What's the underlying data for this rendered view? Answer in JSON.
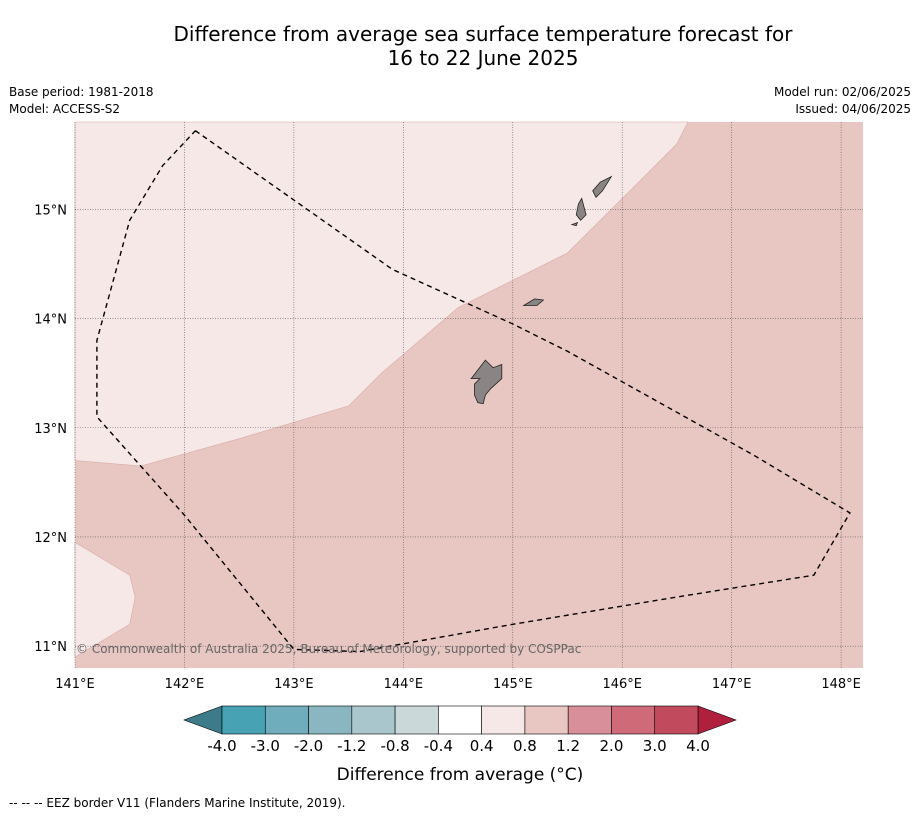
{
  "title_line1": "Difference from average sea surface temperature forecast for",
  "title_line2": "16 to 22 June 2025",
  "header_left": {
    "base_period": "Base period: 1981-2018",
    "model": "Model: ACCESS-S2"
  },
  "header_right": {
    "model_run": "Model run: 02/06/2025",
    "issued": "Issued: 04/06/2025"
  },
  "map": {
    "lon_range": [
      141.0,
      148.2
    ],
    "lat_range": [
      10.8,
      15.8
    ],
    "lon_ticks": [
      141,
      142,
      143,
      144,
      145,
      146,
      147,
      148
    ],
    "lat_ticks": [
      11,
      12,
      13,
      14,
      15
    ],
    "lon_tick_labels": [
      "141°E",
      "142°E",
      "143°E",
      "144°E",
      "145°E",
      "146°E",
      "147°E",
      "148°E"
    ],
    "lat_tick_labels": [
      "11°N",
      "12°N",
      "13°N",
      "14°N",
      "15°N"
    ],
    "copyright": "© Commonwealth of Australia 2025, Bureau of Meteorology, supported by COSPPac",
    "regions": [
      {
        "category": "0.4 to 0.8",
        "color": "#f5e8e7",
        "lonlat": [
          [
            141.0,
            15.8
          ],
          [
            146.6,
            15.8
          ],
          [
            146.5,
            15.6
          ],
          [
            145.5,
            14.6
          ],
          [
            144.5,
            14.1
          ],
          [
            143.8,
            13.5
          ],
          [
            143.5,
            13.2
          ],
          [
            142.5,
            12.9
          ],
          [
            141.6,
            12.65
          ],
          [
            141.0,
            12.7
          ]
        ]
      },
      {
        "category": "0.4 to 0.8",
        "color": "#f5e8e7",
        "lonlat": [
          [
            141.0,
            11.95
          ],
          [
            141.5,
            11.65
          ],
          [
            141.55,
            11.45
          ],
          [
            141.5,
            11.2
          ],
          [
            141.0,
            10.9
          ]
        ]
      }
    ],
    "background_category": {
      "category": "0.8 to 1.2",
      "color": "#e8c6c2"
    },
    "islands": [
      {
        "name": "Guam",
        "lonlat": [
          [
            144.75,
            13.62
          ],
          [
            144.82,
            13.55
          ],
          [
            144.9,
            13.58
          ],
          [
            144.9,
            13.45
          ],
          [
            144.8,
            13.36
          ],
          [
            144.75,
            13.3
          ],
          [
            144.73,
            13.22
          ],
          [
            144.68,
            13.23
          ],
          [
            144.65,
            13.3
          ],
          [
            144.65,
            13.4
          ],
          [
            144.7,
            13.45
          ],
          [
            144.62,
            13.45
          ]
        ]
      },
      {
        "name": "Rota",
        "lonlat": [
          [
            145.1,
            14.12
          ],
          [
            145.2,
            14.18
          ],
          [
            145.28,
            14.17
          ],
          [
            145.22,
            14.12
          ],
          [
            145.15,
            14.12
          ]
        ]
      },
      {
        "name": "Tinian",
        "lonlat": [
          [
            145.63,
            15.1
          ],
          [
            145.67,
            14.95
          ],
          [
            145.62,
            14.9
          ],
          [
            145.58,
            14.95
          ],
          [
            145.6,
            15.05
          ]
        ]
      },
      {
        "name": "Saipan",
        "lonlat": [
          [
            145.8,
            15.25
          ],
          [
            145.9,
            15.3
          ],
          [
            145.82,
            15.17
          ],
          [
            145.76,
            15.11
          ],
          [
            145.73,
            15.17
          ]
        ]
      },
      {
        "name": "Aguijan",
        "lonlat": [
          [
            145.54,
            14.86
          ],
          [
            145.59,
            14.88
          ],
          [
            145.58,
            14.85
          ]
        ]
      }
    ],
    "eez_border": [
      [
        142.1,
        15.72
      ],
      [
        143.9,
        14.45
      ],
      [
        145.0,
        13.95
      ],
      [
        145.5,
        13.7
      ],
      [
        147.2,
        12.75
      ],
      [
        148.08,
        12.22
      ],
      [
        147.75,
        11.65
      ],
      [
        146.5,
        11.45
      ],
      [
        145.0,
        11.2
      ],
      [
        143.6,
        10.95
      ],
      [
        143.0,
        10.97
      ],
      [
        142.0,
        12.2
      ],
      [
        141.6,
        12.65
      ],
      [
        141.2,
        13.1
      ],
      [
        141.2,
        13.8
      ],
      [
        141.5,
        14.9
      ],
      [
        141.8,
        15.4
      ],
      [
        142.1,
        15.72
      ]
    ]
  },
  "legend": {
    "title": "Difference from average (°C)",
    "tick_labels": [
      "-4.0",
      "-3.0",
      "-2.0",
      "-1.2",
      "-0.8",
      "-0.4",
      "0.4",
      "0.8",
      "1.2",
      "2.0",
      "3.0",
      "4.0"
    ],
    "low_extend_color": "#3d7b8a",
    "high_extend_color": "#b0203e",
    "colors": [
      "#47a3b3",
      "#6fadbd",
      "#8ab6c2",
      "#a8c6cb",
      "#cbd8da",
      "#ffffff",
      "#f5e8e7",
      "#e8c6c2",
      "#d98f99",
      "#cf6b79",
      "#c14a5c"
    ]
  },
  "footer": "--  --  -- EEZ border V11 (Flanders Marine Institute, 2019)."
}
